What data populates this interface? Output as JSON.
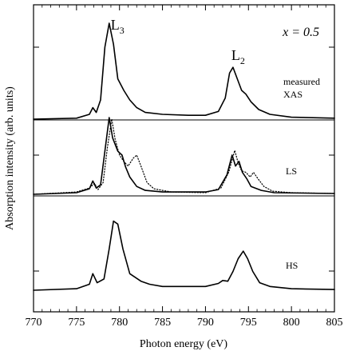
{
  "chart_data": {
    "type": "line",
    "xlabel": "Photon energy (eV)",
    "ylabel": "Absorption intensity (arb. units)",
    "xlim": [
      770,
      805
    ],
    "x_ticks": [
      770,
      775,
      780,
      785,
      790,
      795,
      800,
      805
    ],
    "grid": false,
    "legend": "none",
    "annotation": "x = 0.5",
    "peak_labels": [
      {
        "text": "L",
        "sub": "3",
        "x": 778.8
      },
      {
        "text": "L",
        "sub": "2",
        "x": 793.2
      }
    ],
    "panels": [
      {
        "label_lines": [
          "measured",
          "XAS"
        ],
        "series": [
          {
            "style": "solid",
            "x": [
              770,
              775,
              776.5,
              776.9,
              777.3,
              777.8,
              778.3,
              778.8,
              779.3,
              779.8,
              780.5,
              781.2,
              782,
              783,
              785,
              788,
              790,
              791.5,
              792.3,
              792.8,
              793.2,
              793.7,
              794.2,
              794.7,
              795.3,
              796.2,
              797.5,
              800,
              805
            ],
            "y": [
              0,
              0.01,
              0.05,
              0.12,
              0.07,
              0.2,
              0.75,
              1.0,
              0.78,
              0.42,
              0.3,
              0.2,
              0.12,
              0.07,
              0.05,
              0.04,
              0.04,
              0.08,
              0.22,
              0.48,
              0.54,
              0.42,
              0.3,
              0.26,
              0.18,
              0.1,
              0.05,
              0.02,
              0.01
            ]
          }
        ]
      },
      {
        "label_lines": [
          "LS"
        ],
        "series": [
          {
            "style": "solid",
            "x": [
              770,
              775,
              776.5,
              776.9,
              777.3,
              777.8,
              778.3,
              778.8,
              779.2,
              779.8,
              780.3,
              780.7,
              781.2,
              782,
              783,
              785,
              790,
              791.5,
              792.5,
              793.1,
              793.5,
              793.9,
              794.3,
              794.8,
              795.3,
              796.5,
              798,
              805
            ],
            "y": [
              0,
              0.02,
              0.07,
              0.17,
              0.08,
              0.12,
              0.55,
              0.98,
              0.72,
              0.55,
              0.5,
              0.35,
              0.22,
              0.1,
              0.05,
              0.03,
              0.03,
              0.06,
              0.25,
              0.5,
              0.36,
              0.42,
              0.28,
              0.2,
              0.1,
              0.05,
              0.02,
              0.01
            ]
          },
          {
            "style": "dotted",
            "x": [
              770,
              775,
              776.5,
              777.1,
              777.5,
              778.1,
              778.6,
              779.1,
              779.5,
              780,
              780.5,
              781,
              781.6,
              782,
              782.5,
              783.2,
              784,
              786,
              790,
              791.8,
              792.7,
              793.4,
              793.8,
              794.2,
              794.7,
              795.2,
              795.6,
              796.1,
              796.8,
              797.8,
              800,
              805
            ],
            "y": [
              0,
              0.03,
              0.08,
              0.14,
              0.06,
              0.15,
              0.6,
              0.96,
              0.7,
              0.5,
              0.42,
              0.36,
              0.46,
              0.5,
              0.36,
              0.15,
              0.07,
              0.03,
              0.02,
              0.08,
              0.28,
              0.56,
              0.4,
              0.3,
              0.28,
              0.22,
              0.28,
              0.2,
              0.1,
              0.04,
              0.02,
              0.01
            ]
          }
        ]
      },
      {
        "label_lines": [
          "HS"
        ],
        "series": [
          {
            "style": "solid",
            "x": [
              770,
              775,
              776.5,
              776.9,
              777.4,
              778.2,
              778.8,
              779.3,
              779.8,
              780.4,
              781.2,
              782.5,
              783.5,
              785,
              790,
              791.5,
              792,
              792.6,
              793.2,
              793.8,
              794.4,
              794.9,
              795.5,
              796.3,
              797.5,
              800,
              805
            ],
            "y": [
              0,
              0.02,
              0.08,
              0.22,
              0.1,
              0.15,
              0.55,
              0.92,
              0.88,
              0.55,
              0.22,
              0.12,
              0.08,
              0.05,
              0.05,
              0.09,
              0.13,
              0.12,
              0.25,
              0.42,
              0.52,
              0.42,
              0.25,
              0.1,
              0.05,
              0.02,
              0.01
            ]
          }
        ]
      }
    ]
  }
}
